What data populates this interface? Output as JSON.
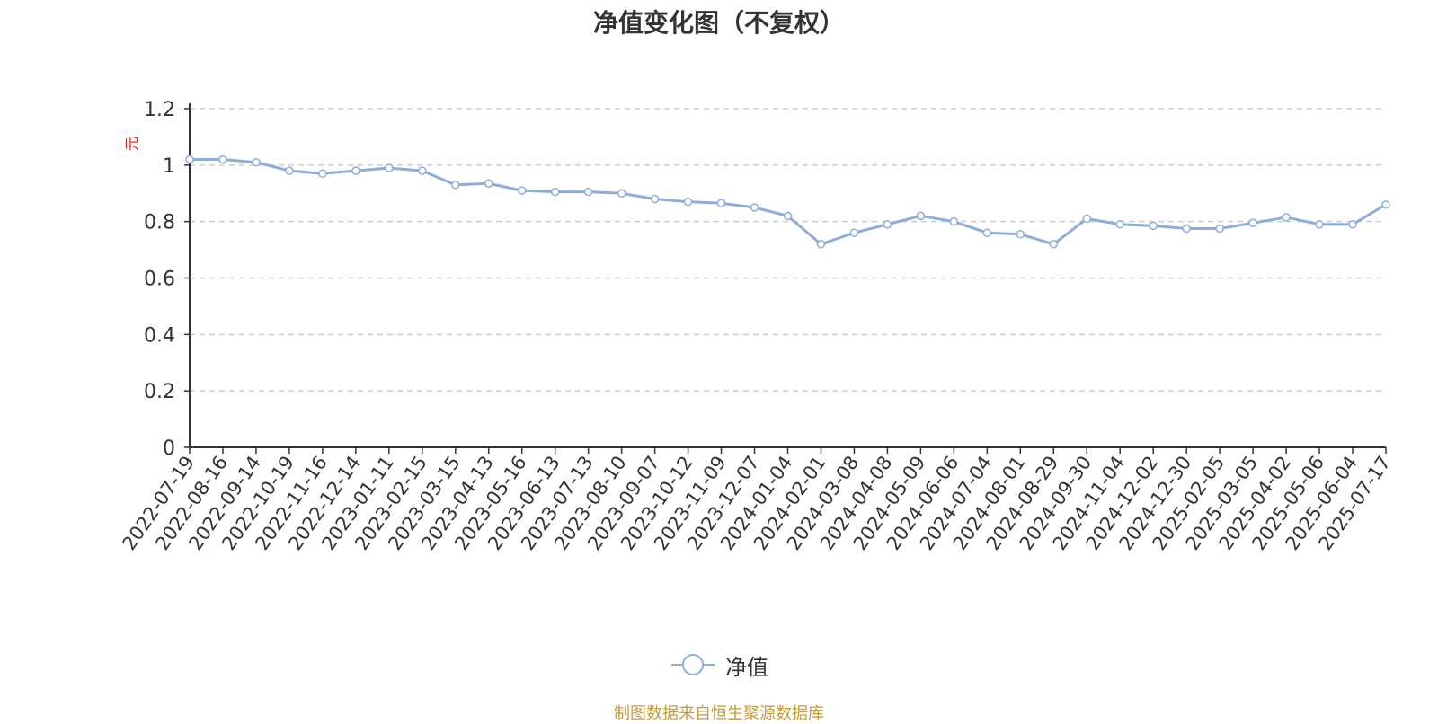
{
  "chart_data": {
    "type": "line",
    "title": "净值变化图（不复权）",
    "ylabel": "元",
    "xlabel": "",
    "ylim": [
      0,
      1.2
    ],
    "yticks": [
      0,
      0.2,
      0.4,
      0.6,
      0.8,
      1,
      1.2
    ],
    "ytick_labels": [
      "0",
      "0.2",
      "0.4",
      "0.6",
      "0.8",
      "1",
      "1.2"
    ],
    "grid": true,
    "legend_position": "bottom-center",
    "categories": [
      "2022-07-19",
      "2022-08-16",
      "2022-09-14",
      "2022-10-19",
      "2022-11-16",
      "2022-12-14",
      "2023-01-11",
      "2023-02-15",
      "2023-03-15",
      "2023-04-13",
      "2023-05-16",
      "2023-06-13",
      "2023-07-13",
      "2023-08-10",
      "2023-09-07",
      "2023-10-12",
      "2023-11-09",
      "2023-12-07",
      "2024-01-04",
      "2024-02-01",
      "2024-03-08",
      "2024-04-08",
      "2024-05-09",
      "2024-06-06",
      "2024-07-04",
      "2024-08-01",
      "2024-08-29",
      "2024-09-30",
      "2024-11-04",
      "2024-12-02",
      "2024-12-30",
      "2025-02-05",
      "2025-03-05",
      "2025-04-02",
      "2025-05-06",
      "2025-06-04",
      "2025-07-17"
    ],
    "series": [
      {
        "name": "净值",
        "color": "#8eaddb",
        "values": [
          1.02,
          1.02,
          1.01,
          0.98,
          0.97,
          0.98,
          0.99,
          0.98,
          0.93,
          0.935,
          0.91,
          0.905,
          0.905,
          0.9,
          0.88,
          0.87,
          0.865,
          0.85,
          0.82,
          0.72,
          0.76,
          0.79,
          0.82,
          0.8,
          0.76,
          0.755,
          0.72,
          0.81,
          0.79,
          0.785,
          0.775,
          0.775,
          0.795,
          0.815,
          0.79,
          0.79,
          0.86
        ]
      }
    ]
  },
  "legend": {
    "label": "净值"
  },
  "source": "制图数据来自恒生聚源数据库"
}
